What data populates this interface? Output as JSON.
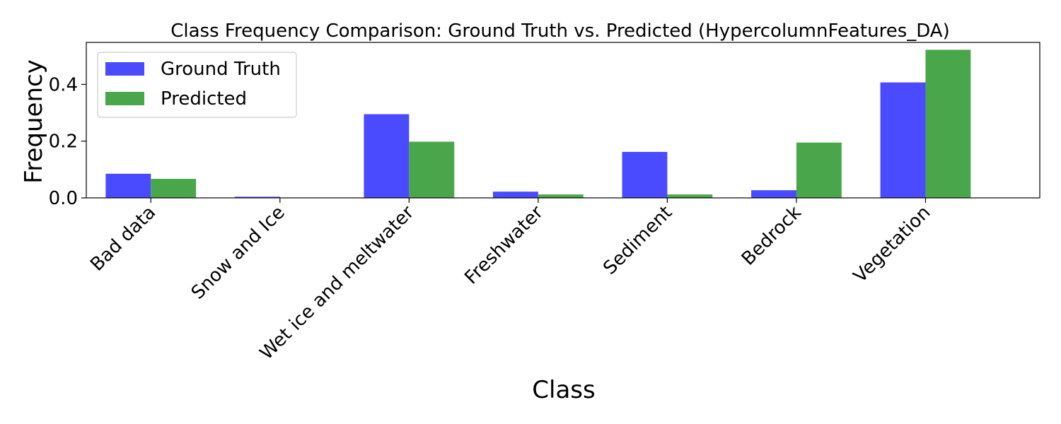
{
  "chart_data": {
    "type": "bar",
    "title": "Class Frequency Comparison: Ground Truth vs. Predicted (HypercolumnFeatures_DA)",
    "xlabel": "Class",
    "ylabel": "Frequency",
    "categories": [
      "Bad data",
      "Snow and Ice",
      "Wet ice and meltwater",
      "Freshwater",
      "Sediment",
      "Bedrock",
      "Vegetation"
    ],
    "series": [
      {
        "name": "Ground Truth",
        "color": "#4a4aff",
        "values": [
          0.085,
          0.004,
          0.295,
          0.022,
          0.162,
          0.027,
          0.407
        ]
      },
      {
        "name": "Predicted",
        "color": "#4aa64a",
        "values": [
          0.067,
          0.0,
          0.198,
          0.012,
          0.012,
          0.195,
          0.522
        ]
      }
    ],
    "ylim": [
      0,
      0.548
    ],
    "yticks": [
      0.0,
      0.2,
      0.4
    ],
    "ytick_labels": [
      "0.0",
      "0.2",
      "0.4"
    ],
    "grid": false,
    "legend_position": "top-left"
  }
}
